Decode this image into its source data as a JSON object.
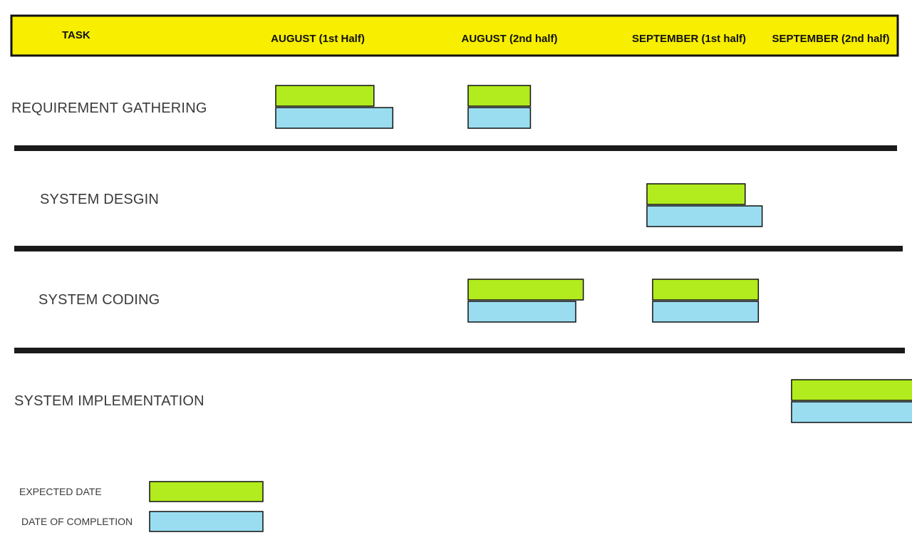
{
  "chart_data": {
    "type": "gantt",
    "header": {
      "task": "TASK",
      "periods": [
        "AUGUST (1st Half)",
        "AUGUST (2nd half)",
        "SEPTEMBER (1st half)",
        "SEPTEMBER (2nd half)"
      ]
    },
    "tasks": [
      {
        "label": "REQUIREMENT GATHERING",
        "expected": [
          {
            "start": 0.0,
            "end": 0.52
          },
          {
            "start": 1.0,
            "end": 1.33
          }
        ],
        "completed": [
          {
            "start": 0.0,
            "end": 0.62
          },
          {
            "start": 1.0,
            "end": 1.33
          }
        ]
      },
      {
        "label": "SYSTEM DESGIN",
        "expected": [
          {
            "start": 2.0,
            "end": 2.52
          }
        ],
        "completed": [
          {
            "start": 2.0,
            "end": 2.61
          }
        ]
      },
      {
        "label": "SYSTEM CODING",
        "expected": [
          {
            "start": 1.0,
            "end": 1.61
          },
          {
            "start": 2.03,
            "end": 2.59
          }
        ],
        "completed": [
          {
            "start": 1.0,
            "end": 1.57
          },
          {
            "start": 2.03,
            "end": 2.59
          }
        ]
      },
      {
        "label": "SYSTEM IMPLEMENTATION",
        "expected": [
          {
            "start": 3.03,
            "end": 3.88
          }
        ],
        "completed": [
          {
            "start": 3.03,
            "end": 3.8
          }
        ]
      }
    ],
    "legend": [
      {
        "label": "EXPECTED DATE",
        "key": "expected"
      },
      {
        "label": "DATE OF COMPLETION",
        "key": "completed"
      }
    ],
    "colors": {
      "header_bg": "#f7ee00",
      "border": "#111111",
      "expected": "#b2eb1e",
      "completed": "#9addf0",
      "divider": "#1a1a1a"
    }
  }
}
